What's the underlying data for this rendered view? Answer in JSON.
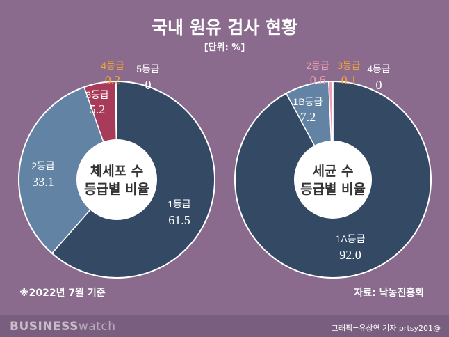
{
  "title": "국내 원유 검사 현황",
  "unit": "[단위: %]",
  "footnote": "※2022년 7월 기준",
  "source": "자료: 낙농진흥회",
  "brand": {
    "part1": "BUSINESS",
    "part2": "watch"
  },
  "credit": "그래픽=유상연 기자 prtsy201@",
  "colors": {
    "background": "#8a6b8e",
    "dark_navy": "#344a64",
    "steel_blue": "#6283a3",
    "crimson": "#a83a5a",
    "orange": "#f2a33a",
    "pink": "#f09cb4",
    "white": "#ffffff"
  },
  "chart_data": [
    {
      "type": "pie",
      "center_label": [
        "체세포 수",
        "등급별 비율"
      ],
      "slices": [
        {
          "category": "1등급",
          "value": 61.5,
          "color": "#344a64",
          "label_color": "#ffffff"
        },
        {
          "category": "2등급",
          "value": 33.1,
          "color": "#6283a3",
          "label_color": "#ffffff"
        },
        {
          "category": "3등급",
          "value": 5.2,
          "color": "#a83a5a",
          "label_color": "#ffffff"
        },
        {
          "category": "4등급",
          "value": 0.2,
          "color": "#f2a33a",
          "label_color": "#f2a33a"
        },
        {
          "category": "5등급",
          "value": 0,
          "color": "#ffffff",
          "label_color": "#ffffff"
        }
      ]
    },
    {
      "type": "pie",
      "center_label": [
        "세균 수",
        "등급별 비율"
      ],
      "slices": [
        {
          "category": "1A등급",
          "value": 92.0,
          "color": "#344a64",
          "label_color": "#ffffff"
        },
        {
          "category": "1B등급",
          "value": 7.2,
          "color": "#6283a3",
          "label_color": "#ffffff"
        },
        {
          "category": "2등급",
          "value": 0.6,
          "color": "#f09cb4",
          "label_color": "#f09cb4"
        },
        {
          "category": "3등급",
          "value": 0.1,
          "color": "#f2a33a",
          "label_color": "#f2a33a"
        },
        {
          "category": "4등급",
          "value": 0,
          "color": "#ffffff",
          "label_color": "#ffffff"
        }
      ]
    }
  ]
}
